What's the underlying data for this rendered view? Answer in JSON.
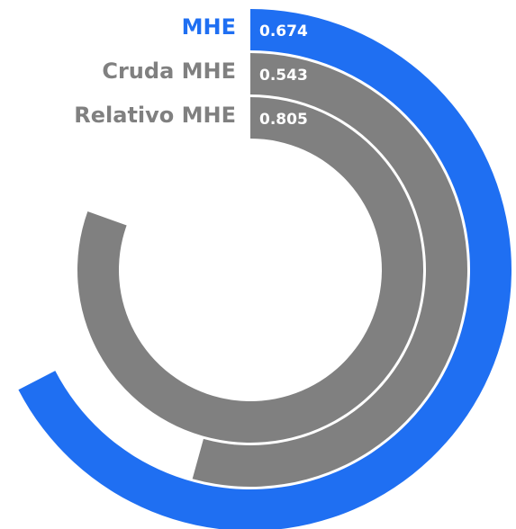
{
  "chart_data": {
    "type": "radial_bar",
    "categories": [
      "MHE",
      "Cruda MHE",
      "Relativo MHE"
    ],
    "values": [
      0.674,
      0.543,
      0.805
    ],
    "colors": [
      "#1f6ff2",
      "#808080",
      "#808080"
    ],
    "max": 1
  }
}
